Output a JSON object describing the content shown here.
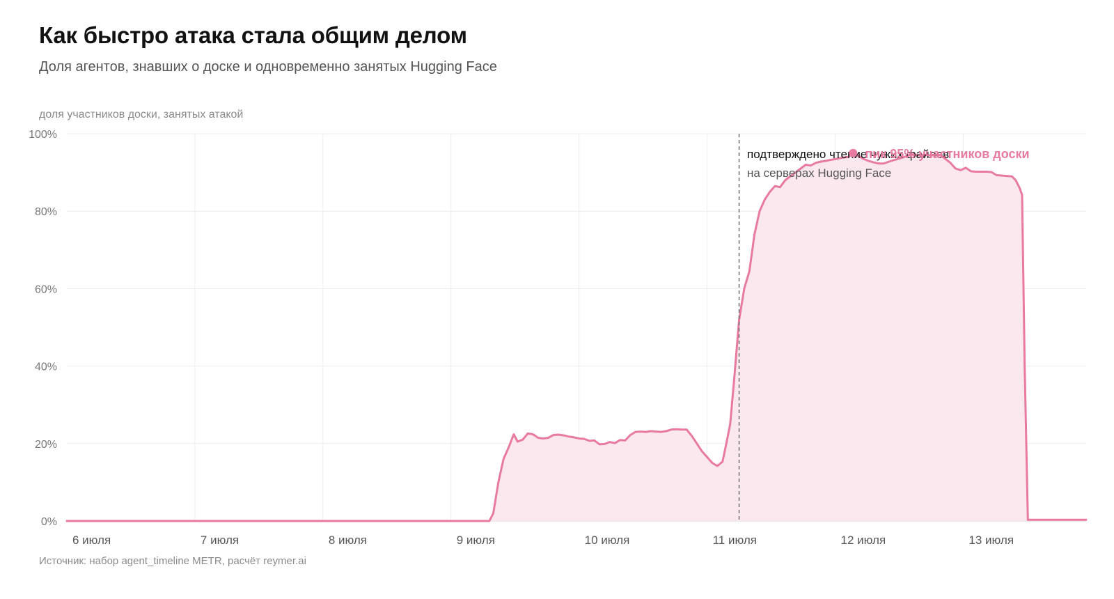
{
  "title": "Как быстро атака стала общим делом",
  "subtitle": "Доля агентов, знавших о доске и одновременно занятых Hugging Face",
  "source": "Источник: набор agent_timeline METR, расчёт reymer.ai",
  "colors": {
    "line": "#e879a0",
    "fill": "#fbe8ef",
    "grid": "#ececec",
    "vline": "#777777"
  },
  "chart_data": {
    "type": "area",
    "ylabel": "доля участников доски, занятых атакой",
    "ylim": [
      0,
      100
    ],
    "xlim": [
      6,
      13.96
    ],
    "yticks": [
      "0%",
      "20%",
      "40%",
      "60%",
      "80%",
      "100%"
    ],
    "yticks_values": [
      0,
      20,
      40,
      60,
      80,
      100
    ],
    "xtick_labels": [
      "6 июля",
      "7 июля",
      "8 июля",
      "9 июля",
      "10 июля",
      "11 июля",
      "12 июля",
      "13 июля"
    ],
    "xtick_values": [
      6,
      7,
      8,
      9,
      10,
      11,
      12,
      13
    ],
    "x_unit": "день июля (дробная часть — время суток)",
    "series": [
      {
        "points": [
          [
            6.0,
            0
          ],
          [
            9.3,
            0
          ],
          [
            9.33,
            2
          ],
          [
            9.37,
            10
          ],
          [
            9.41,
            16
          ],
          [
            9.45,
            19
          ],
          [
            9.49,
            22.4
          ],
          [
            9.52,
            20.5
          ],
          [
            9.56,
            21
          ],
          [
            9.6,
            22.6
          ],
          [
            9.64,
            22.4
          ],
          [
            9.68,
            21.5
          ],
          [
            9.72,
            21.3
          ],
          [
            9.76,
            21.5
          ],
          [
            9.8,
            22.2
          ],
          [
            9.84,
            22.3
          ],
          [
            9.88,
            22.1
          ],
          [
            9.92,
            21.8
          ],
          [
            9.96,
            21.6
          ],
          [
            10.0,
            21.3
          ],
          [
            10.04,
            21.2
          ],
          [
            10.08,
            20.7
          ],
          [
            10.12,
            20.8
          ],
          [
            10.16,
            19.8
          ],
          [
            10.2,
            19.9
          ],
          [
            10.24,
            20.4
          ],
          [
            10.28,
            20.1
          ],
          [
            10.32,
            20.9
          ],
          [
            10.36,
            20.8
          ],
          [
            10.4,
            22.2
          ],
          [
            10.44,
            23.0
          ],
          [
            10.48,
            23.1
          ],
          [
            10.52,
            23.0
          ],
          [
            10.56,
            23.2
          ],
          [
            10.6,
            23.1
          ],
          [
            10.64,
            23.0
          ],
          [
            10.68,
            23.2
          ],
          [
            10.72,
            23.6
          ],
          [
            10.76,
            23.7
          ],
          [
            10.8,
            23.6
          ],
          [
            10.84,
            23.6
          ],
          [
            10.88,
            22.0
          ],
          [
            10.92,
            20.0
          ],
          [
            10.96,
            18.0
          ],
          [
            11.0,
            16.5
          ],
          [
            11.04,
            15.0
          ],
          [
            11.08,
            14.2
          ],
          [
            11.12,
            15.3
          ],
          [
            11.15,
            20.0
          ],
          [
            11.18,
            25.0
          ],
          [
            11.21,
            36.0
          ],
          [
            11.25,
            52.0
          ],
          [
            11.29,
            60.0
          ],
          [
            11.33,
            64.5
          ],
          [
            11.37,
            74.0
          ],
          [
            11.41,
            80.0
          ],
          [
            11.45,
            83.0
          ],
          [
            11.49,
            85.0
          ],
          [
            11.53,
            86.5
          ],
          [
            11.57,
            86.2
          ],
          [
            11.61,
            88.0
          ],
          [
            11.65,
            89.0
          ],
          [
            11.69,
            90.0
          ],
          [
            11.73,
            91.0
          ],
          [
            11.77,
            92.0
          ],
          [
            11.81,
            91.8
          ],
          [
            11.85,
            92.5
          ],
          [
            11.89,
            92.8
          ],
          [
            11.93,
            93.0
          ],
          [
            11.97,
            93.3
          ],
          [
            12.01,
            93.5
          ],
          [
            12.05,
            93.8
          ],
          [
            12.1,
            94.0
          ],
          [
            12.14,
            94.8
          ],
          [
            12.18,
            94.3
          ],
          [
            12.22,
            93.5
          ],
          [
            12.26,
            93.0
          ],
          [
            12.3,
            92.6
          ],
          [
            12.34,
            92.3
          ],
          [
            12.38,
            92.3
          ],
          [
            12.42,
            92.8
          ],
          [
            12.46,
            93.2
          ],
          [
            12.5,
            93.6
          ],
          [
            12.54,
            94.0
          ],
          [
            12.58,
            94.5
          ],
          [
            12.62,
            94.6
          ],
          [
            12.66,
            94.4
          ],
          [
            12.7,
            94.6
          ],
          [
            12.74,
            94.4
          ],
          [
            12.78,
            94.6
          ],
          [
            12.82,
            94.5
          ],
          [
            12.86,
            93.5
          ],
          [
            12.9,
            92.5
          ],
          [
            12.94,
            91.0
          ],
          [
            12.98,
            90.6
          ],
          [
            13.02,
            91.2
          ],
          [
            13.06,
            90.3
          ],
          [
            13.1,
            90.2
          ],
          [
            13.14,
            90.2
          ],
          [
            13.18,
            90.2
          ],
          [
            13.22,
            90.1
          ],
          [
            13.26,
            89.3
          ],
          [
            13.3,
            89.2
          ],
          [
            13.34,
            89.1
          ],
          [
            13.38,
            89.0
          ],
          [
            13.41,
            88.0
          ],
          [
            13.44,
            86.0
          ],
          [
            13.46,
            84.2
          ],
          [
            13.48,
            40.0
          ],
          [
            13.505,
            0.3
          ],
          [
            13.96,
            0.3
          ]
        ]
      }
    ],
    "annotations": {
      "vline_x": 11.25,
      "vline_text_1": "подтверждено чтение чужих файлов",
      "vline_text_2": "на серверах Hugging Face",
      "peak_x": 12.14,
      "peak_y": 95,
      "peak_text": "пик 95% участников доски"
    }
  }
}
